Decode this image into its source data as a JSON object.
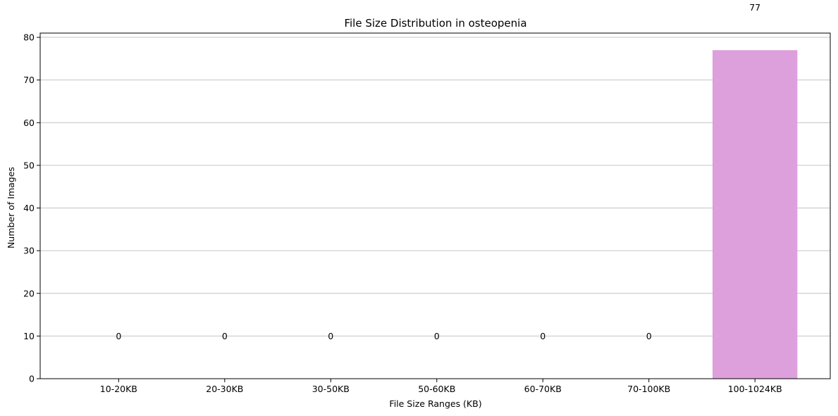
{
  "chart_data": {
    "type": "bar",
    "title": "File Size Distribution in osteopenia",
    "xlabel": "File Size Ranges (KB)",
    "ylabel": "Number of Images",
    "categories": [
      "10-20KB",
      "20-30KB",
      "30-50KB",
      "50-60KB",
      "60-70KB",
      "70-100KB",
      "100-1024KB"
    ],
    "values": [
      0,
      0,
      0,
      0,
      0,
      0,
      77
    ],
    "data_labels": [
      "0",
      "0",
      "0",
      "0",
      "0",
      "0",
      "77"
    ],
    "ylim": [
      0,
      81
    ],
    "yticks": [
      0,
      10,
      20,
      30,
      40,
      50,
      60,
      70,
      80
    ],
    "grid": "horizontal",
    "colors": {
      "bar": "#dda0dd",
      "grid": "#c4c4c4",
      "axis": "#000000"
    }
  }
}
